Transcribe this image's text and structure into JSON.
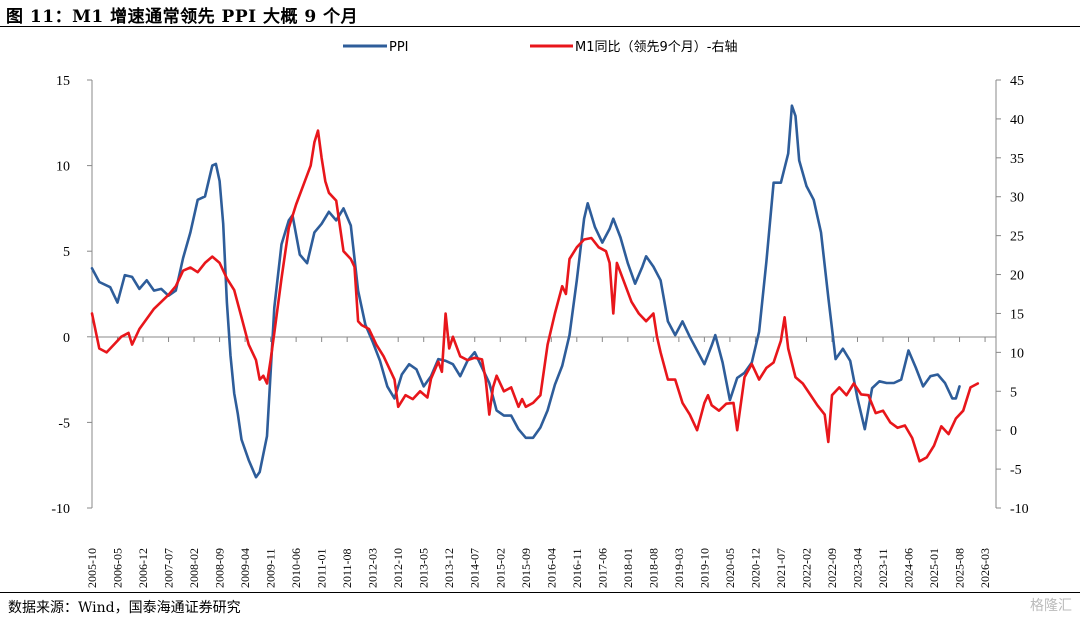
{
  "title": "图 11：M1 增速通常领先 PPI 大概 9 个月",
  "source": "数据来源：Wind，国泰海通证券研究",
  "watermark": "格隆汇",
  "chart_data": {
    "type": "line",
    "title": "",
    "left_axis": {
      "min": -10,
      "max": 15,
      "ticks": [
        -10,
        -5,
        0,
        5,
        10,
        15
      ]
    },
    "right_axis": {
      "min": -10,
      "max": 45,
      "ticks": [
        -10,
        -5,
        0,
        5,
        10,
        15,
        20,
        25,
        30,
        35,
        40,
        45
      ]
    },
    "x_range": [
      "2005-10",
      "2026-06"
    ],
    "x_tick_labels": [
      "2005-10",
      "2006-05",
      "2006-12",
      "2007-07",
      "2008-02",
      "2008-09",
      "2009-04",
      "2009-11",
      "2010-06",
      "2011-01",
      "2011-08",
      "2012-03",
      "2012-10",
      "2013-05",
      "2013-12",
      "2014-07",
      "2015-02",
      "2015-09",
      "2016-04",
      "2016-11",
      "2017-06",
      "2018-01",
      "2018-08",
      "2019-03",
      "2019-10",
      "2020-05",
      "2020-12",
      "2021-07",
      "2022-02",
      "2022-09",
      "2023-04",
      "2023-11",
      "2024-06",
      "2025-01",
      "2025-08",
      "2026-03"
    ],
    "legend_position": "top-center",
    "grid": false,
    "series": [
      {
        "name": "PPI",
        "axis": "left",
        "color": "#2E5D9A",
        "points": [
          [
            "2005-10",
            4.0
          ],
          [
            "2005-12",
            3.2
          ],
          [
            "2006-03",
            2.9
          ],
          [
            "2006-05",
            2.0
          ],
          [
            "2006-07",
            3.6
          ],
          [
            "2006-09",
            3.5
          ],
          [
            "2006-11",
            2.8
          ],
          [
            "2007-01",
            3.3
          ],
          [
            "2007-03",
            2.7
          ],
          [
            "2007-05",
            2.8
          ],
          [
            "2007-07",
            2.4
          ],
          [
            "2007-09",
            2.7
          ],
          [
            "2007-11",
            4.6
          ],
          [
            "2008-01",
            6.1
          ],
          [
            "2008-03",
            8.0
          ],
          [
            "2008-05",
            8.2
          ],
          [
            "2008-07",
            10.0
          ],
          [
            "2008-08",
            10.1
          ],
          [
            "2008-09",
            9.1
          ],
          [
            "2008-10",
            6.6
          ],
          [
            "2008-11",
            2.0
          ],
          [
            "2008-12",
            -1.1
          ],
          [
            "2009-01",
            -3.3
          ],
          [
            "2009-02",
            -4.5
          ],
          [
            "2009-03",
            -6.0
          ],
          [
            "2009-05",
            -7.2
          ],
          [
            "2009-07",
            -8.2
          ],
          [
            "2009-08",
            -7.9
          ],
          [
            "2009-10",
            -5.8
          ],
          [
            "2009-11",
            -2.1
          ],
          [
            "2009-12",
            1.7
          ],
          [
            "2010-02",
            5.4
          ],
          [
            "2010-04",
            6.8
          ],
          [
            "2010-05",
            7.1
          ],
          [
            "2010-07",
            4.8
          ],
          [
            "2010-09",
            4.3
          ],
          [
            "2010-11",
            6.1
          ],
          [
            "2011-01",
            6.6
          ],
          [
            "2011-03",
            7.3
          ],
          [
            "2011-05",
            6.8
          ],
          [
            "2011-07",
            7.5
          ],
          [
            "2011-09",
            6.5
          ],
          [
            "2011-11",
            2.7
          ],
          [
            "2012-01",
            0.7
          ],
          [
            "2012-03",
            -0.3
          ],
          [
            "2012-05",
            -1.4
          ],
          [
            "2012-07",
            -2.9
          ],
          [
            "2012-09",
            -3.6
          ],
          [
            "2012-11",
            -2.2
          ],
          [
            "2013-01",
            -1.6
          ],
          [
            "2013-03",
            -1.9
          ],
          [
            "2013-05",
            -2.9
          ],
          [
            "2013-07",
            -2.3
          ],
          [
            "2013-09",
            -1.3
          ],
          [
            "2013-11",
            -1.4
          ],
          [
            "2014-01",
            -1.6
          ],
          [
            "2014-03",
            -2.3
          ],
          [
            "2014-05",
            -1.4
          ],
          [
            "2014-07",
            -0.9
          ],
          [
            "2014-09",
            -1.8
          ],
          [
            "2014-11",
            -2.7
          ],
          [
            "2015-01",
            -4.3
          ],
          [
            "2015-03",
            -4.6
          ],
          [
            "2015-05",
            -4.6
          ],
          [
            "2015-07",
            -5.4
          ],
          [
            "2015-09",
            -5.9
          ],
          [
            "2015-11",
            -5.9
          ],
          [
            "2016-01",
            -5.3
          ],
          [
            "2016-03",
            -4.3
          ],
          [
            "2016-05",
            -2.8
          ],
          [
            "2016-07",
            -1.7
          ],
          [
            "2016-09",
            0.1
          ],
          [
            "2016-11",
            3.3
          ],
          [
            "2017-01",
            6.9
          ],
          [
            "2017-02",
            7.8
          ],
          [
            "2017-04",
            6.4
          ],
          [
            "2017-06",
            5.5
          ],
          [
            "2017-08",
            6.3
          ],
          [
            "2017-09",
            6.9
          ],
          [
            "2017-11",
            5.8
          ],
          [
            "2018-01",
            4.3
          ],
          [
            "2018-03",
            3.1
          ],
          [
            "2018-05",
            4.1
          ],
          [
            "2018-06",
            4.7
          ],
          [
            "2018-08",
            4.1
          ],
          [
            "2018-10",
            3.3
          ],
          [
            "2018-12",
            0.9
          ],
          [
            "2019-02",
            0.1
          ],
          [
            "2019-04",
            0.9
          ],
          [
            "2019-06",
            0.0
          ],
          [
            "2019-08",
            -0.8
          ],
          [
            "2019-10",
            -1.6
          ],
          [
            "2019-12",
            -0.5
          ],
          [
            "2020-01",
            0.1
          ],
          [
            "2020-03",
            -1.5
          ],
          [
            "2020-05",
            -3.7
          ],
          [
            "2020-07",
            -2.4
          ],
          [
            "2020-09",
            -2.1
          ],
          [
            "2020-11",
            -1.5
          ],
          [
            "2021-01",
            0.3
          ],
          [
            "2021-03",
            4.4
          ],
          [
            "2021-05",
            9.0
          ],
          [
            "2021-07",
            9.0
          ],
          [
            "2021-09",
            10.7
          ],
          [
            "2021-10",
            13.5
          ],
          [
            "2021-11",
            12.9
          ],
          [
            "2021-12",
            10.3
          ],
          [
            "2022-02",
            8.8
          ],
          [
            "2022-04",
            8.0
          ],
          [
            "2022-06",
            6.1
          ],
          [
            "2022-08",
            2.3
          ],
          [
            "2022-10",
            -1.3
          ],
          [
            "2022-12",
            -0.7
          ],
          [
            "2023-02",
            -1.4
          ],
          [
            "2023-04",
            -3.6
          ],
          [
            "2023-06",
            -5.4
          ],
          [
            "2023-08",
            -3.0
          ],
          [
            "2023-10",
            -2.6
          ],
          [
            "2023-12",
            -2.7
          ],
          [
            "2024-02",
            -2.7
          ],
          [
            "2024-04",
            -2.5
          ],
          [
            "2024-06",
            -0.8
          ],
          [
            "2024-08",
            -1.8
          ],
          [
            "2024-10",
            -2.9
          ],
          [
            "2024-12",
            -2.3
          ],
          [
            "2025-02",
            -2.2
          ],
          [
            "2025-04",
            -2.7
          ],
          [
            "2025-06",
            -3.6
          ],
          [
            "2025-07",
            -3.6
          ],
          [
            "2025-08",
            -2.9
          ]
        ]
      },
      {
        "name": "M1同比（领先9个月）-右轴",
        "axis": "right",
        "color": "#E8161B",
        "points": [
          [
            "2005-10",
            15.0
          ],
          [
            "2005-12",
            10.5
          ],
          [
            "2006-02",
            10.0
          ],
          [
            "2006-04",
            11.0
          ],
          [
            "2006-06",
            12.0
          ],
          [
            "2006-08",
            12.5
          ],
          [
            "2006-09",
            11.0
          ],
          [
            "2006-11",
            13.0
          ],
          [
            "2007-01",
            14.3
          ],
          [
            "2007-03",
            15.6
          ],
          [
            "2007-05",
            16.5
          ],
          [
            "2007-07",
            17.4
          ],
          [
            "2007-09",
            18.5
          ],
          [
            "2007-11",
            20.5
          ],
          [
            "2008-01",
            20.9
          ],
          [
            "2008-03",
            20.3
          ],
          [
            "2008-05",
            21.5
          ],
          [
            "2008-07",
            22.3
          ],
          [
            "2008-09",
            21.5
          ],
          [
            "2008-11",
            19.5
          ],
          [
            "2009-01",
            18.0
          ],
          [
            "2009-03",
            14.5
          ],
          [
            "2009-05",
            11.0
          ],
          [
            "2009-07",
            9.0
          ],
          [
            "2009-08",
            6.5
          ],
          [
            "2009-09",
            7.0
          ],
          [
            "2009-10",
            6.0
          ],
          [
            "2009-11",
            9.0
          ],
          [
            "2009-12",
            12.5
          ],
          [
            "2010-02",
            19.5
          ],
          [
            "2010-04",
            26.0
          ],
          [
            "2010-06",
            29.0
          ],
          [
            "2010-08",
            31.5
          ],
          [
            "2010-10",
            34.0
          ],
          [
            "2010-11",
            37.0
          ],
          [
            "2010-12",
            38.5
          ],
          [
            "2011-01",
            35.0
          ],
          [
            "2011-02",
            32.0
          ],
          [
            "2011-03",
            30.5
          ],
          [
            "2011-05",
            29.5
          ],
          [
            "2011-07",
            23.0
          ],
          [
            "2011-09",
            22.0
          ],
          [
            "2011-10",
            21.0
          ],
          [
            "2011-11",
            14.0
          ],
          [
            "2011-12",
            13.5
          ],
          [
            "2012-02",
            13.0
          ],
          [
            "2012-04",
            11.0
          ],
          [
            "2012-06",
            9.5
          ],
          [
            "2012-08",
            7.5
          ],
          [
            "2012-09",
            6.5
          ],
          [
            "2012-10",
            3.0
          ],
          [
            "2012-12",
            4.5
          ],
          [
            "2013-02",
            4.0
          ],
          [
            "2013-04",
            5.0
          ],
          [
            "2013-06",
            4.2
          ],
          [
            "2013-07",
            6.6
          ],
          [
            "2013-09",
            8.8
          ],
          [
            "2013-10",
            7.5
          ],
          [
            "2013-11",
            15.0
          ],
          [
            "2013-12",
            10.5
          ],
          [
            "2014-01",
            12.0
          ],
          [
            "2014-03",
            9.5
          ],
          [
            "2014-05",
            9.0
          ],
          [
            "2014-07",
            9.3
          ],
          [
            "2014-09",
            9.1
          ],
          [
            "2014-10",
            6.5
          ],
          [
            "2014-11",
            2.0
          ],
          [
            "2014-12",
            5.5
          ],
          [
            "2015-01",
            7.0
          ],
          [
            "2015-03",
            5.0
          ],
          [
            "2015-05",
            5.5
          ],
          [
            "2015-07",
            3.0
          ],
          [
            "2015-08",
            4.0
          ],
          [
            "2015-09",
            3.0
          ],
          [
            "2015-11",
            3.5
          ],
          [
            "2016-01",
            4.5
          ],
          [
            "2016-03",
            11.0
          ],
          [
            "2016-05",
            15.0
          ],
          [
            "2016-07",
            18.5
          ],
          [
            "2016-08",
            17.5
          ],
          [
            "2016-09",
            22.0
          ],
          [
            "2016-11",
            23.5
          ],
          [
            "2017-01",
            24.5
          ],
          [
            "2017-03",
            24.7
          ],
          [
            "2017-05",
            23.5
          ],
          [
            "2017-07",
            23.0
          ],
          [
            "2017-08",
            21.5
          ],
          [
            "2017-09",
            15.0
          ],
          [
            "2017-10",
            21.5
          ],
          [
            "2017-12",
            19.0
          ],
          [
            "2018-02",
            16.5
          ],
          [
            "2018-04",
            15.0
          ],
          [
            "2018-06",
            14.0
          ],
          [
            "2018-08",
            15.0
          ],
          [
            "2018-09",
            12.0
          ],
          [
            "2018-10",
            10.0
          ],
          [
            "2018-12",
            6.5
          ],
          [
            "2019-02",
            6.5
          ],
          [
            "2019-04",
            3.5
          ],
          [
            "2019-06",
            2.0
          ],
          [
            "2019-08",
            0.0
          ],
          [
            "2019-10",
            3.5
          ],
          [
            "2019-11",
            4.5
          ],
          [
            "2019-12",
            3.2
          ],
          [
            "2020-02",
            2.5
          ],
          [
            "2020-04",
            3.4
          ],
          [
            "2020-06",
            3.5
          ],
          [
            "2020-07",
            0.0
          ],
          [
            "2020-09",
            6.8
          ],
          [
            "2020-11",
            8.5
          ],
          [
            "2021-01",
            6.5
          ],
          [
            "2021-03",
            8.0
          ],
          [
            "2021-05",
            8.7
          ],
          [
            "2021-07",
            11.5
          ],
          [
            "2021-08",
            14.5
          ],
          [
            "2021-09",
            10.5
          ],
          [
            "2021-11",
            6.8
          ],
          [
            "2022-01",
            6.0
          ],
          [
            "2022-03",
            4.6
          ],
          [
            "2022-05",
            3.2
          ],
          [
            "2022-07",
            2.0
          ],
          [
            "2022-08",
            -1.5
          ],
          [
            "2022-09",
            4.5
          ],
          [
            "2022-11",
            5.5
          ],
          [
            "2023-01",
            4.5
          ],
          [
            "2023-03",
            6.0
          ],
          [
            "2023-05",
            4.6
          ],
          [
            "2023-07",
            4.5
          ],
          [
            "2023-09",
            2.2
          ],
          [
            "2023-11",
            2.5
          ],
          [
            "2024-01",
            1.0
          ],
          [
            "2024-03",
            0.3
          ],
          [
            "2024-05",
            0.6
          ],
          [
            "2024-07",
            -1.0
          ],
          [
            "2024-09",
            -4.0
          ],
          [
            "2024-11",
            -3.5
          ],
          [
            "2025-01",
            -2.0
          ],
          [
            "2025-03",
            0.5
          ],
          [
            "2025-05",
            -0.5
          ],
          [
            "2025-07",
            1.5
          ],
          [
            "2025-09",
            2.5
          ],
          [
            "2025-11",
            5.5
          ],
          [
            "2026-01",
            6.0
          ]
        ]
      }
    ]
  }
}
